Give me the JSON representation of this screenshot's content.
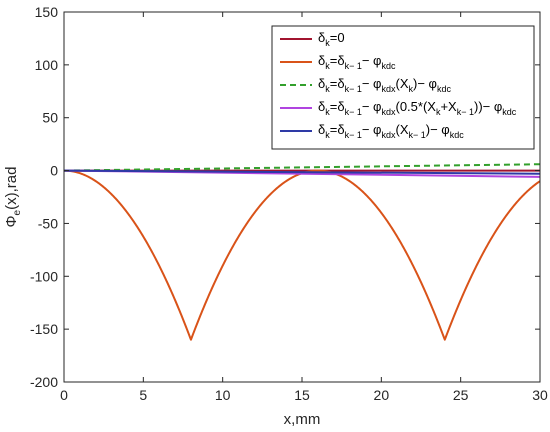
{
  "chart_data": {
    "type": "line",
    "xlabel": "x,mm",
    "ylabel": "Φe(x),rad",
    "ylabel_main": "Φ",
    "ylabel_sub": "e",
    "ylabel_rest": "(x),rad",
    "xlim": [
      0,
      30
    ],
    "ylim": [
      -200,
      150
    ],
    "xticks": [
      0,
      5,
      10,
      15,
      20,
      25,
      30
    ],
    "yticks": [
      -200,
      -150,
      -100,
      -50,
      0,
      50,
      100,
      150
    ],
    "xtick_labels": [
      "0",
      "5",
      "10",
      "15",
      "20",
      "25",
      "30"
    ],
    "ytick_labels": [
      "-200",
      "-150",
      "-100",
      "-50",
      "0",
      "50",
      "100",
      "150"
    ],
    "grid": false,
    "legend_placement": "top-right",
    "series": [
      {
        "name": "δk=0",
        "legend_parts": [
          [
            "δ",
            ""
          ],
          [
            "k",
            "sub"
          ],
          [
            "=0",
            ""
          ]
        ],
        "color": "#a2142f",
        "dash": "solid",
        "points": [
          [
            0,
            0
          ],
          [
            30,
            0
          ]
        ]
      },
      {
        "name": "δk=δk−1− φkdc",
        "legend_parts": [
          [
            "δ",
            ""
          ],
          [
            "k",
            "sub"
          ],
          [
            "=δ",
            ""
          ],
          [
            "k− 1",
            "sub"
          ],
          [
            "− φ",
            ""
          ],
          [
            "kdc",
            "sub"
          ]
        ],
        "color": "#d95319",
        "dash": "solid",
        "shape": "periodic-arch",
        "period": 16,
        "offset": 8,
        "min": -160,
        "max": 0
      },
      {
        "name": "δk=δk−1− φkdx(Xk)− φkdc",
        "legend_parts": [
          [
            "δ",
            ""
          ],
          [
            "k",
            "sub"
          ],
          [
            "=δ",
            ""
          ],
          [
            "k− 1",
            "sub"
          ],
          [
            "− φ",
            ""
          ],
          [
            "kdx",
            "sub"
          ],
          [
            "(X",
            ""
          ],
          [
            "k",
            "sub"
          ],
          [
            ")− φ",
            ""
          ],
          [
            "kdc",
            "sub"
          ]
        ],
        "color": "#33a02c",
        "dash": "dashed",
        "points": [
          [
            0,
            0
          ],
          [
            30,
            6
          ]
        ]
      },
      {
        "name": "δk=δk−1− φkdx(0.5*(Xk+Xk−1))− φkdc",
        "legend_parts": [
          [
            "δ",
            ""
          ],
          [
            "k",
            "sub"
          ],
          [
            "=δ",
            ""
          ],
          [
            "k− 1",
            "sub"
          ],
          [
            "− φ",
            ""
          ],
          [
            "kdx",
            "sub"
          ],
          [
            "(0.5*(X",
            ""
          ],
          [
            "k",
            "sub"
          ],
          [
            "+X",
            ""
          ],
          [
            "k− 1",
            "sub"
          ],
          [
            "))− φ",
            ""
          ],
          [
            "kdc",
            "sub"
          ]
        ],
        "color": "#b044e0",
        "dash": "solid",
        "points": [
          [
            0,
            0
          ],
          [
            30,
            -6
          ]
        ]
      },
      {
        "name": "δk=δk−1− φkdx(Xk−1)− φkdc",
        "legend_parts": [
          [
            "δ",
            ""
          ],
          [
            "k",
            "sub"
          ],
          [
            "=δ",
            ""
          ],
          [
            "k− 1",
            "sub"
          ],
          [
            "− φ",
            ""
          ],
          [
            "kdx",
            "sub"
          ],
          [
            "(X",
            ""
          ],
          [
            "k− 1",
            "sub"
          ],
          [
            ")− φ",
            ""
          ],
          [
            "kdc",
            "sub"
          ]
        ],
        "color": "#2e3aa6",
        "dash": "solid",
        "points": [
          [
            0,
            0
          ],
          [
            30,
            -3
          ]
        ]
      }
    ]
  }
}
